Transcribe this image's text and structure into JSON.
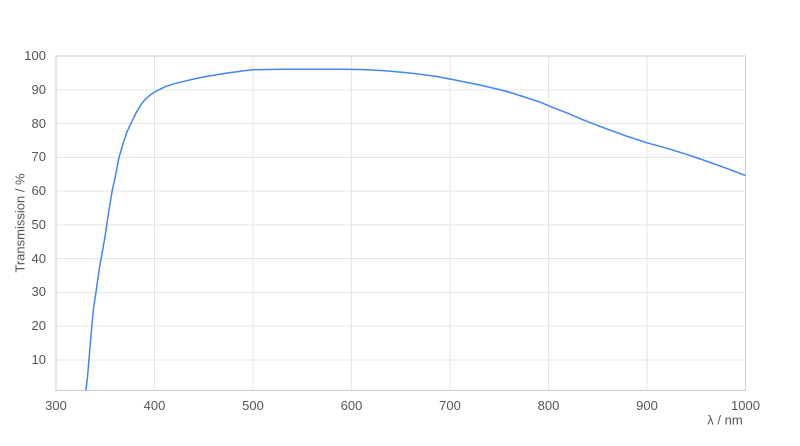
{
  "chart_data": {
    "type": "line",
    "title": "",
    "xlabel": "λ / nm",
    "ylabel": "Transmission / %",
    "xlim": [
      300,
      1000
    ],
    "ylim": [
      0,
      100
    ],
    "x_ticks": [
      300,
      400,
      500,
      600,
      700,
      800,
      900,
      1000
    ],
    "y_ticks": [
      10,
      20,
      30,
      40,
      50,
      60,
      70,
      80,
      90,
      100
    ],
    "grid": true,
    "legend": "none",
    "series": [
      {
        "name": "Transmission",
        "x": [
          330,
          332,
          334,
          336,
          338,
          341,
          344,
          347,
          350,
          353,
          357,
          360,
          364,
          368,
          372,
          376,
          381,
          386,
          391,
          396,
          400,
          410,
          420,
          430,
          440,
          450,
          460,
          470,
          480,
          490,
          500,
          515,
          530,
          550,
          570,
          590,
          610,
          625,
          640,
          655,
          670,
          685,
          700,
          715,
          730,
          745,
          760,
          775,
          790,
          805,
          820,
          835,
          850,
          865,
          880,
          900,
          920,
          940,
          960,
          980,
          1000
        ],
        "y": [
          0,
          5,
          12,
          19,
          25,
          31,
          37,
          42,
          47,
          53,
          60,
          64,
          70,
          74,
          77.5,
          80,
          83,
          85.5,
          87.3,
          88.5,
          89.3,
          90.8,
          91.8,
          92.5,
          93.2,
          93.8,
          94.3,
          94.8,
          95.2,
          95.6,
          95.9,
          96.0,
          96.1,
          96.1,
          96.1,
          96.1,
          96.0,
          95.8,
          95.5,
          95.1,
          94.6,
          94.0,
          93.2,
          92.3,
          91.4,
          90.4,
          89.3,
          87.9,
          86.5,
          84.7,
          83.0,
          81.1,
          79.4,
          77.8,
          76.2,
          74.3,
          72.7,
          70.9,
          68.9,
          66.8,
          64.6
        ]
      }
    ],
    "colors": {
      "line": "#4285f4",
      "grid": "#e6e6e6",
      "border": "#cccccc",
      "text": "#555555",
      "background": "#ffffff"
    }
  }
}
